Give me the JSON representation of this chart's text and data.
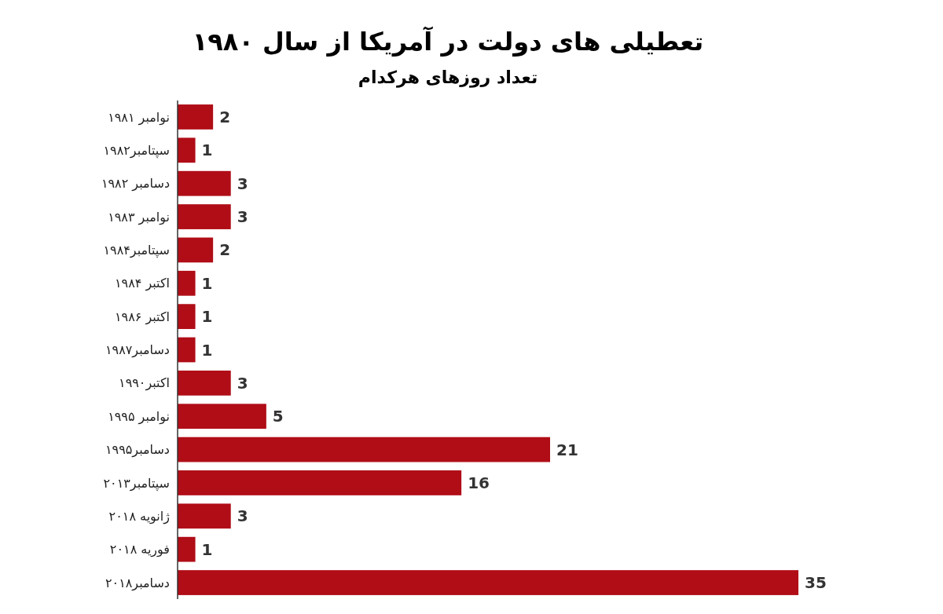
{
  "chart_data": {
    "type": "bar",
    "orientation": "horizontal",
    "title": "تعطیلی های دولت در آمریکا از سال ۱۹۸۰",
    "subtitle": "تعداد روزهای هرکدام",
    "categories": [
      "نوامبر ۱۹۸۱",
      "سپتامبر۱۹۸۲",
      "دسامبر ۱۹۸۲",
      "نوامبر ۱۹۸۳",
      "سپتامبر۱۹۸۴",
      "اکتبر ۱۹۸۴",
      "اکتبر ۱۹۸۶",
      "دسامبر۱۹۸۷",
      "اکتبر۱۹۹۰",
      "نوامبر ۱۹۹۵",
      "دسامبر۱۹۹۵",
      "سپتامبر۲۰۱۳",
      "ژانویه ۲۰۱۸",
      "فوریه ۲۰۱۸",
      "دسامبر۲۰۱۸"
    ],
    "values": [
      2,
      1,
      3,
      3,
      2,
      1,
      1,
      1,
      3,
      5,
      21,
      16,
      3,
      1,
      35
    ],
    "color": "#b00d17",
    "data_labels": true
  }
}
